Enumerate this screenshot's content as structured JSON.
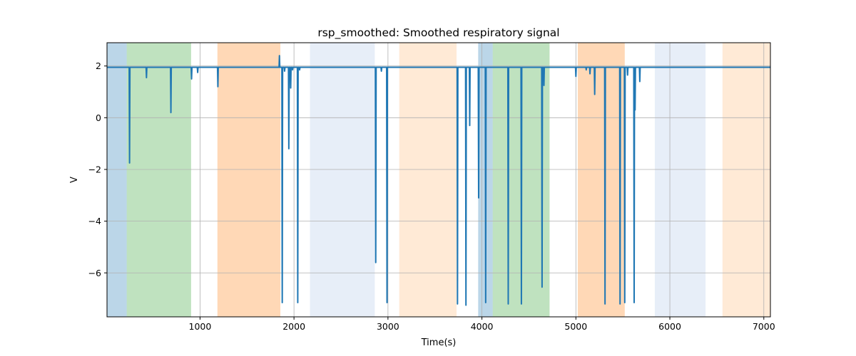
{
  "chart_data": {
    "type": "line",
    "title": "rsp_smoothed: Smoothed respiratory signal",
    "xlabel": "Time(s)",
    "ylabel": "V",
    "xlim": [
      10,
      7070
    ],
    "ylim": [
      -7.7,
      2.9
    ],
    "grid": true,
    "xticks": [
      1000,
      2000,
      3000,
      4000,
      5000,
      6000,
      7000
    ],
    "xtick_labels": [
      "1000",
      "2000",
      "3000",
      "4000",
      "5000",
      "6000",
      "7000"
    ],
    "yticks": [
      -6,
      -4,
      -2,
      0,
      2
    ],
    "ytick_labels": [
      "−6",
      "−4",
      "−2",
      "0",
      "2"
    ],
    "baseline": 1.95,
    "line_color": "#1f77b4",
    "bands": [
      {
        "x0": 10,
        "x1": 220,
        "color": "#1f77b4",
        "opacity": 0.3
      },
      {
        "x0": 220,
        "x1": 905,
        "color": "#2ca02c",
        "opacity": 0.3
      },
      {
        "x0": 1185,
        "x1": 1855,
        "color": "#ff7f0e",
        "opacity": 0.3
      },
      {
        "x0": 2170,
        "x1": 2860,
        "color": "#aec7e8",
        "opacity": 0.3
      },
      {
        "x0": 3120,
        "x1": 3730,
        "color": "#ffbb78",
        "opacity": 0.3
      },
      {
        "x0": 3960,
        "x1": 4115,
        "color": "#1f77b4",
        "opacity": 0.3
      },
      {
        "x0": 4115,
        "x1": 4720,
        "color": "#2ca02c",
        "opacity": 0.3
      },
      {
        "x0": 5020,
        "x1": 5520,
        "color": "#ff7f0e",
        "opacity": 0.3
      },
      {
        "x0": 5840,
        "x1": 6380,
        "color": "#aec7e8",
        "opacity": 0.3
      },
      {
        "x0": 6560,
        "x1": 7070,
        "color": "#ffbb78",
        "opacity": 0.3
      }
    ],
    "spikes": [
      {
        "x": 250,
        "y": -1.75
      },
      {
        "x": 430,
        "y": 1.55
      },
      {
        "x": 690,
        "y": 0.2
      },
      {
        "x": 910,
        "y": 1.5
      },
      {
        "x": 975,
        "y": 1.75
      },
      {
        "x": 1190,
        "y": 1.2
      },
      {
        "x": 1845,
        "y": 2.4
      },
      {
        "x": 1875,
        "y": -7.15
      },
      {
        "x": 1900,
        "y": 1.8
      },
      {
        "x": 1945,
        "y": -1.2
      },
      {
        "x": 1965,
        "y": 1.15
      },
      {
        "x": 1985,
        "y": 1.85
      },
      {
        "x": 2040,
        "y": -7.15
      },
      {
        "x": 2060,
        "y": 1.85
      },
      {
        "x": 2870,
        "y": -5.6
      },
      {
        "x": 2930,
        "y": 1.8
      },
      {
        "x": 2990,
        "y": -7.15
      },
      {
        "x": 3740,
        "y": -7.2
      },
      {
        "x": 3830,
        "y": -7.25
      },
      {
        "x": 3870,
        "y": -0.3
      },
      {
        "x": 3965,
        "y": -3.1
      },
      {
        "x": 4040,
        "y": -7.15
      },
      {
        "x": 4280,
        "y": -7.2
      },
      {
        "x": 4420,
        "y": -7.2
      },
      {
        "x": 4640,
        "y": -6.55
      },
      {
        "x": 4660,
        "y": 1.25
      },
      {
        "x": 5000,
        "y": 1.6
      },
      {
        "x": 5110,
        "y": 1.85
      },
      {
        "x": 5150,
        "y": 1.7
      },
      {
        "x": 5200,
        "y": 0.9
      },
      {
        "x": 5310,
        "y": -7.2
      },
      {
        "x": 5470,
        "y": -7.2
      },
      {
        "x": 5520,
        "y": -7.15
      },
      {
        "x": 5550,
        "y": 1.65
      },
      {
        "x": 5620,
        "y": -7.15
      },
      {
        "x": 5630,
        "y": 0.3
      },
      {
        "x": 5680,
        "y": 1.4
      }
    ]
  }
}
